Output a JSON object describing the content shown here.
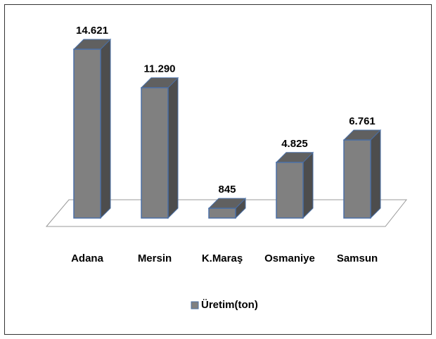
{
  "chart_data": {
    "type": "bar3d",
    "categories": [
      "Adana",
      "Mersin",
      "K.Maraş",
      "Osmaniye",
      "Samsun"
    ],
    "series": [
      {
        "name": "Üretim(ton)",
        "color": "#808080",
        "values": [
          14621,
          11290,
          845,
          4825,
          6761
        ],
        "value_labels": [
          "14.621",
          "11.290",
          "845",
          "4.825",
          "6.761"
        ]
      }
    ],
    "legend": "bottom"
  }
}
